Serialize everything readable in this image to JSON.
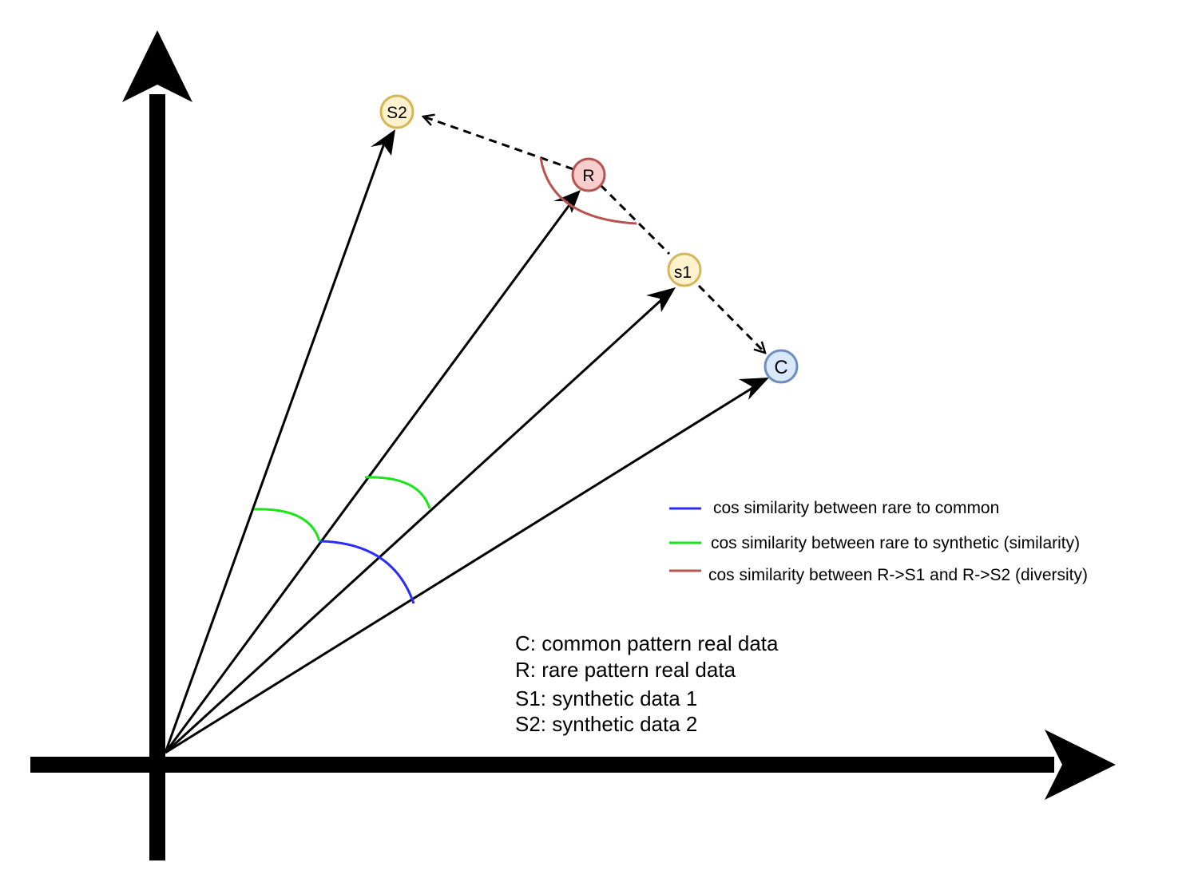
{
  "nodes": {
    "s2": {
      "label": "S2",
      "fill": "#fff2cc",
      "stroke": "#d6b656"
    },
    "r": {
      "label": "R",
      "fill": "#f8cecc",
      "stroke": "#b85450"
    },
    "s1": {
      "label": "s1",
      "fill": "#fff2cc",
      "stroke": "#d6b656"
    },
    "c": {
      "label": "C",
      "fill": "#dae8fc",
      "stroke": "#6c8ebf"
    }
  },
  "legend": [
    {
      "color": "#2b2bff",
      "text": "cos similarity between rare to common"
    },
    {
      "color": "#19e619",
      "text": "cos similarity between rare to synthetic  (similarity)"
    },
    {
      "color": "#b85450",
      "text": "cos similarity between R->S1 and R->S2 (diversity)"
    }
  ],
  "key": [
    "C: common pattern real data",
    "R: rare pattern real data",
    "S1: synthetic data 1",
    "S2: synthetic data 2"
  ]
}
